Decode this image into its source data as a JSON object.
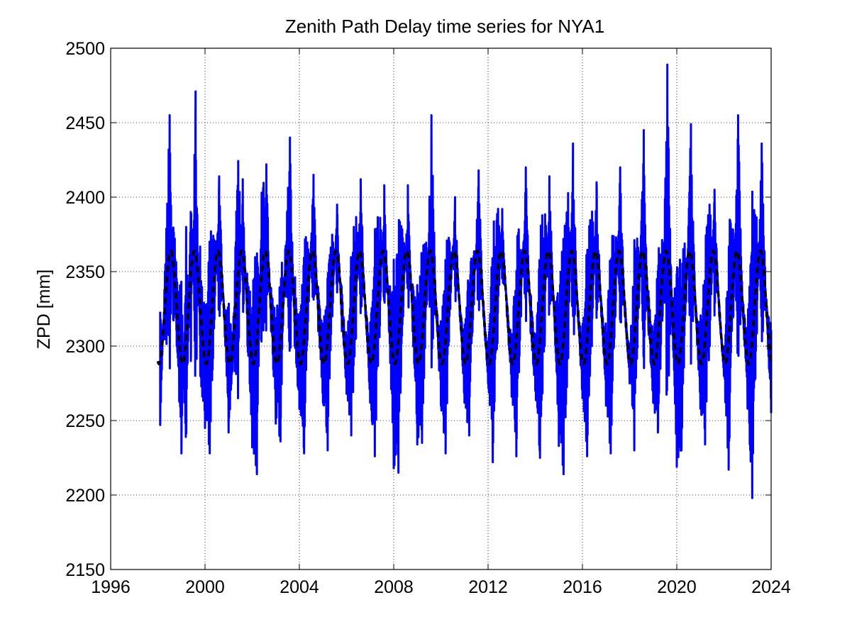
{
  "chart_data": {
    "type": "line",
    "title": "Zenith Path Delay time series for NYA1",
    "xlabel": "",
    "ylabel": "ZPD [mm]",
    "xlim": [
      1996,
      2024
    ],
    "ylim": [
      2150,
      2500
    ],
    "x_ticks": [
      1996,
      2000,
      2004,
      2008,
      2012,
      2016,
      2020,
      2024
    ],
    "y_ticks": [
      2150,
      2200,
      2250,
      2300,
      2350,
      2400,
      2450,
      2500
    ],
    "grid": true,
    "legend": "none",
    "series": [
      {
        "color": "#0000ff",
        "style": "solid",
        "x": [
          1998.1,
          1998.3,
          1998.5,
          1998.65,
          1998.8,
          1999.0,
          1999.2,
          1999.4,
          1999.6,
          1999.8,
          2000.0,
          2000.2,
          2000.4,
          2000.6,
          2000.8,
          2001.0,
          2001.2,
          2001.4,
          2001.6,
          2001.8,
          2002.0,
          2002.2,
          2002.4,
          2002.6,
          2002.8,
          2003.0,
          2003.2,
          2003.4,
          2003.6,
          2003.8,
          2004.0,
          2004.2,
          2004.4,
          2004.6,
          2004.8,
          2005.0,
          2005.2,
          2005.4,
          2005.6,
          2005.8,
          2006.0,
          2006.2,
          2006.4,
          2006.6,
          2006.8,
          2007.0,
          2007.2,
          2007.4,
          2007.6,
          2007.8,
          2008.0,
          2008.2,
          2008.4,
          2008.6,
          2008.8,
          2009.0,
          2009.2,
          2009.4,
          2009.6,
          2009.8,
          2010.0,
          2010.2,
          2010.4,
          2010.6,
          2010.8,
          2011.0,
          2011.2,
          2011.4,
          2011.6,
          2011.8,
          2012.0,
          2012.2,
          2012.4,
          2012.6,
          2012.8,
          2013.0,
          2013.2,
          2013.4,
          2013.6,
          2013.8,
          2014.0,
          2014.2,
          2014.4,
          2014.6,
          2014.8,
          2015.0,
          2015.2,
          2015.4,
          2015.6,
          2015.8,
          2016.0,
          2016.2,
          2016.4,
          2016.6,
          2016.8,
          2017.0,
          2017.2,
          2017.4,
          2017.6,
          2017.8,
          2018.0,
          2018.2,
          2018.4,
          2018.6,
          2018.8,
          2019.0,
          2019.2,
          2019.4,
          2019.6,
          2019.8,
          2020.0,
          2020.2,
          2020.4,
          2020.6,
          2020.8,
          2021.0,
          2021.2,
          2021.4,
          2021.6,
          2021.8,
          2022.0,
          2022.2,
          2022.4,
          2022.6,
          2022.8,
          2023.0,
          2023.2,
          2023.4,
          2023.6,
          2023.8,
          2024.0
        ],
        "values": [
          2247,
          2350,
          2455,
          2318,
          2300,
          2228,
          2380,
          2290,
          2471,
          2280,
          2245,
          2228,
          2318,
          2414,
          2320,
          2242,
          2290,
          2265,
          2412,
          2300,
          2232,
          2214,
          2403,
          2422,
          2310,
          2248,
          2236,
          2365,
          2440,
          2300,
          2258,
          2228,
          2330,
          2415,
          2310,
          2262,
          2230,
          2320,
          2395,
          2310,
          2268,
          2240,
          2305,
          2412,
          2320,
          2262,
          2226,
          2306,
          2408,
          2310,
          2218,
          2215,
          2320,
          2408,
          2310,
          2234,
          2235,
          2328,
          2455,
          2320,
          2260,
          2228,
          2325,
          2400,
          2320,
          2262,
          2240,
          2328,
          2418,
          2320,
          2275,
          2222,
          2302,
          2392,
          2320,
          2266,
          2226,
          2320,
          2420,
          2310,
          2270,
          2225,
          2300,
          2414,
          2320,
          2233,
          2214,
          2292,
          2436,
          2320,
          2265,
          2226,
          2300,
          2410,
          2320,
          2260,
          2228,
          2320,
          2420,
          2320,
          2275,
          2230,
          2328,
          2445,
          2310,
          2262,
          2242,
          2320,
          2489,
          2320,
          2219,
          2230,
          2330,
          2449,
          2320,
          2258,
          2234,
          2300,
          2405,
          2320,
          2280,
          2217,
          2320,
          2455,
          2320,
          2258,
          2198,
          2310,
          2436,
          2320,
          2255
        ]
      },
      {
        "color": "#000000",
        "style": "dashed",
        "model": "annual sinusoid",
        "mean": 2326,
        "amplitude": 38,
        "period_years": 1,
        "peak_phase_year_fraction": 0.55,
        "x_range": [
          1998.0,
          2024.0
        ]
      }
    ]
  }
}
